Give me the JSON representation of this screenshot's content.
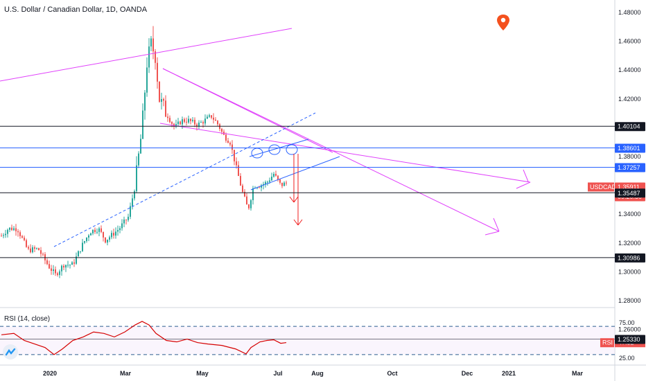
{
  "header": {
    "title": "U.S. Dollar / Canadian Dollar, 1D, OANDA"
  },
  "price_axis": {
    "ticks": [
      "1.48000",
      "1.46000",
      "1.44000",
      "1.42000",
      "1.38000",
      "1.34000",
      "1.32000",
      "1.30000",
      "1.28000",
      "1.26000"
    ],
    "labels": [
      {
        "text": "1.40104",
        "bg": "#131722",
        "fg": "#ffffff",
        "value": 1.40104
      },
      {
        "text": "1.38601",
        "bg": "#2962ff",
        "fg": "#ffffff",
        "value": 1.38601
      },
      {
        "text": "1.37257",
        "bg": "#2962ff",
        "fg": "#ffffff",
        "value": 1.37257
      },
      {
        "text": "USDCAD",
        "bg": "#ef5350",
        "fg": "#ffffff",
        "value": 1.35911
      },
      {
        "text": "1.35911",
        "bg": "#ef5350",
        "fg": "#ffffff",
        "value": 1.35911
      },
      {
        "text": "09:20:50",
        "bg": "#ef5350",
        "fg": "#ffffff",
        "value": 1.357
      },
      {
        "text": "1.35487",
        "bg": "#131722",
        "fg": "#ffffff",
        "value": 1.35487
      },
      {
        "text": "1.30986",
        "bg": "#131722",
        "fg": "#ffffff",
        "value": 1.30986
      },
      {
        "text": "1.25330",
        "bg": "#131722",
        "fg": "#ffffff",
        "value": 1.2533
      }
    ]
  },
  "time_axis": {
    "labels": [
      "2020",
      "Mar",
      "May",
      "Jul",
      "Aug",
      "Oct",
      "Dec",
      "2021",
      "Mar"
    ]
  },
  "rsi": {
    "title": "RSI (14, close)",
    "ticks": [
      "75.00",
      "25.00"
    ],
    "badge": "RSI",
    "value": "47.32",
    "upper": 70,
    "lower": 30
  },
  "colors": {
    "up": "#26a69a",
    "down": "#ef5350",
    "magenta": "#e040fb",
    "blue": "#2962ff",
    "black": "#131722",
    "red": "#ef1c1c"
  },
  "icons": [
    "map-pin-icon",
    "tradingview-logo-icon"
  ]
}
